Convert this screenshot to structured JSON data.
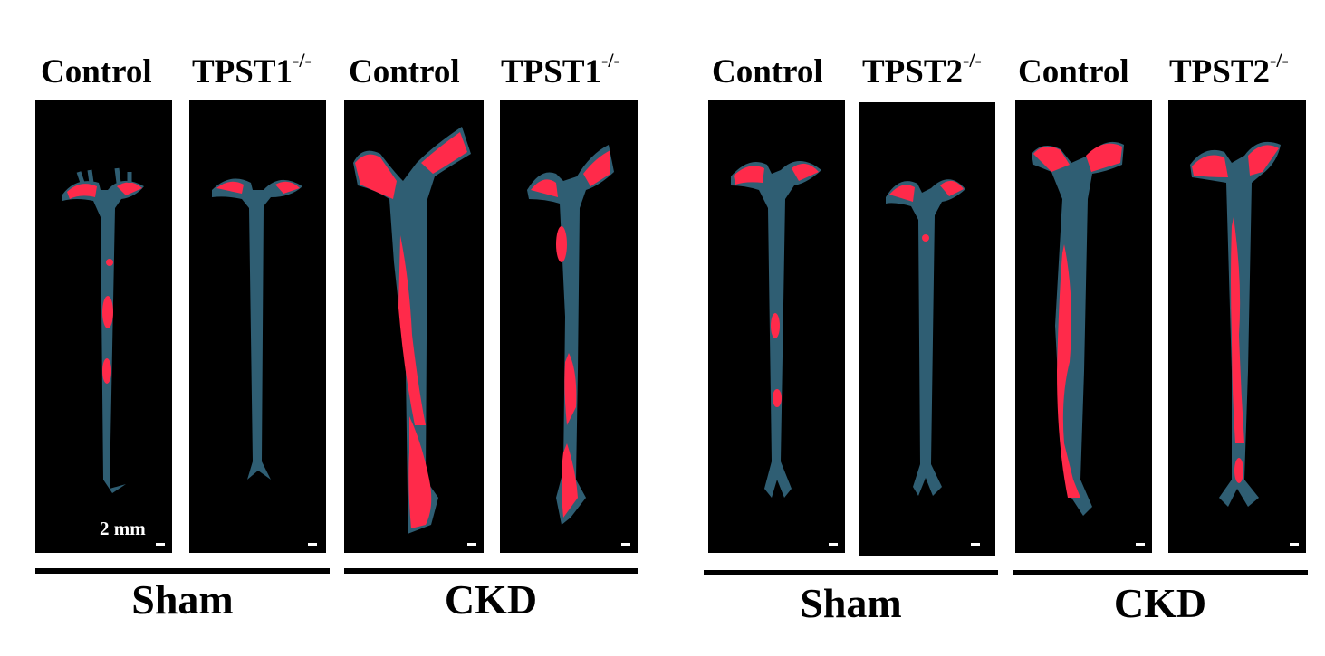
{
  "figure": {
    "left_half": {
      "panels": [
        {
          "label_main": "Control",
          "label_sup": ""
        },
        {
          "label_main": "TPST1",
          "label_sup": "-/-"
        },
        {
          "label_main": "Control",
          "label_sup": ""
        },
        {
          "label_main": "TPST1",
          "label_sup": "-/-"
        }
      ],
      "groups": [
        "Sham",
        "CKD"
      ]
    },
    "right_half": {
      "panels": [
        {
          "label_main": "Control",
          "label_sup": ""
        },
        {
          "label_main": "TPST2",
          "label_sup": "-/-"
        },
        {
          "label_main": "Control",
          "label_sup": ""
        },
        {
          "label_main": "TPST2",
          "label_sup": "-/-"
        }
      ],
      "groups": [
        "Sham",
        "CKD"
      ]
    },
    "scale_bar_label": "2 mm",
    "colors": {
      "background": "#000000",
      "tissue": "#2f5e73",
      "calcification_stain": "#ff2a4a"
    }
  }
}
